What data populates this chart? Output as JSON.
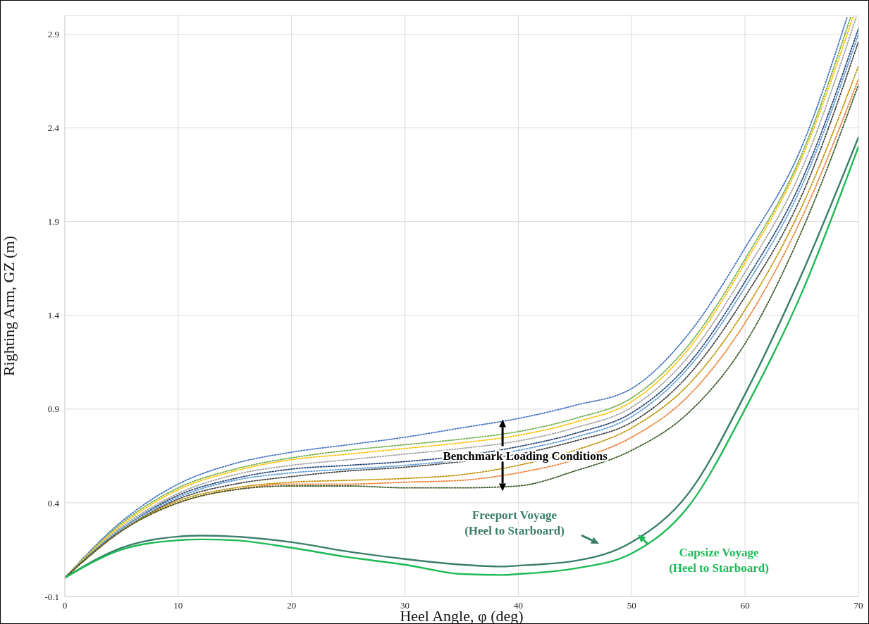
{
  "chart_data": {
    "type": "line",
    "xlabel": "Heel Angle, φ (deg)",
    "ylabel": "Righting Arm, GZ (m)",
    "x": [
      0,
      5,
      10,
      15,
      20,
      25,
      30,
      35,
      40,
      45,
      50,
      55,
      60,
      65,
      70
    ],
    "xlim": [
      0,
      70
    ],
    "xticks": [
      0,
      10,
      20,
      30,
      40,
      50,
      60,
      70
    ],
    "ylim": [
      -0.1,
      3.0
    ],
    "yticks": [
      -0.1,
      0.4,
      0.9,
      1.4,
      1.9,
      2.4,
      2.9
    ],
    "grid": true,
    "marker": "none",
    "series": [
      {
        "color": "#4472c4",
        "line_style": "dotted",
        "x": [
          0,
          5,
          10,
          15,
          20,
          25,
          30,
          35,
          40,
          45,
          50,
          55,
          60,
          65,
          69
        ],
        "values": [
          0,
          0.3,
          0.5,
          0.61,
          0.67,
          0.71,
          0.75,
          0.8,
          0.85,
          0.92,
          1.01,
          1.3,
          1.76,
          2.3,
          2.99
        ]
      },
      {
        "color": "#70ad47",
        "line_style": "dotted",
        "x": [
          0,
          5,
          10,
          15,
          20,
          25,
          30,
          35,
          40,
          45,
          50,
          55,
          60,
          65,
          69.3
        ],
        "values": [
          0,
          0.29,
          0.48,
          0.58,
          0.64,
          0.68,
          0.71,
          0.74,
          0.78,
          0.85,
          0.96,
          1.24,
          1.7,
          2.26,
          2.99
        ]
      },
      {
        "color": "#ffc000",
        "line_style": "dotted",
        "x": [
          0,
          5,
          10,
          15,
          20,
          25,
          30,
          35,
          40,
          45,
          50,
          55,
          60,
          65,
          69.5
        ],
        "values": [
          0,
          0.28,
          0.47,
          0.57,
          0.63,
          0.66,
          0.69,
          0.72,
          0.76,
          0.83,
          0.94,
          1.22,
          1.68,
          2.24,
          2.99
        ]
      },
      {
        "color": "#a5a5a5",
        "line_style": "dotted",
        "x": [
          0,
          5,
          10,
          15,
          20,
          25,
          30,
          35,
          40,
          45,
          50,
          55,
          60,
          65,
          69.8
        ],
        "values": [
          0,
          0.27,
          0.45,
          0.55,
          0.6,
          0.63,
          0.66,
          0.69,
          0.73,
          0.8,
          0.91,
          1.18,
          1.63,
          2.18,
          2.99
        ]
      },
      {
        "color": "#264478",
        "line_style": "dotted",
        "values": [
          0,
          0.26,
          0.44,
          0.53,
          0.58,
          0.6,
          0.62,
          0.65,
          0.7,
          0.77,
          0.88,
          1.14,
          1.58,
          2.12,
          2.93
        ]
      },
      {
        "color": "#5b9bd5",
        "line_style": "dotted",
        "values": [
          0,
          0.26,
          0.43,
          0.52,
          0.56,
          0.58,
          0.6,
          0.63,
          0.68,
          0.75,
          0.86,
          1.12,
          1.55,
          2.09,
          2.9
        ]
      },
      {
        "color": "#404040",
        "line_style": "dotted",
        "values": [
          0,
          0.25,
          0.42,
          0.5,
          0.54,
          0.57,
          0.59,
          0.62,
          0.66,
          0.73,
          0.83,
          1.08,
          1.5,
          2.04,
          2.86
        ]
      },
      {
        "color": "#bf9000",
        "line_style": "dotted",
        "values": [
          0,
          0.25,
          0.41,
          0.48,
          0.51,
          0.52,
          0.53,
          0.55,
          0.6,
          0.68,
          0.8,
          1.03,
          1.43,
          1.98,
          2.73
        ]
      },
      {
        "color": "#ed7d31",
        "line_style": "dotted",
        "values": [
          0,
          0.25,
          0.4,
          0.47,
          0.5,
          0.5,
          0.51,
          0.52,
          0.56,
          0.63,
          0.75,
          0.97,
          1.36,
          1.92,
          2.66
        ]
      },
      {
        "color": "#375623",
        "line_style": "dotted",
        "values": [
          0,
          0.25,
          0.4,
          0.47,
          0.49,
          0.49,
          0.48,
          0.48,
          0.49,
          0.57,
          0.68,
          0.88,
          1.25,
          1.85,
          2.63
        ]
      },
      {
        "color": "#3a7d6a",
        "line_style": "solid",
        "x": [
          0,
          5,
          10,
          12,
          15,
          20,
          25,
          30,
          35,
          38.5,
          40,
          45,
          50,
          55,
          60,
          65,
          70
        ],
        "values": [
          0,
          0.16,
          0.22,
          0.225,
          0.22,
          0.19,
          0.14,
          0.1,
          0.07,
          0.06,
          0.065,
          0.09,
          0.19,
          0.45,
          0.98,
          1.62,
          2.35
        ]
      },
      {
        "color": "#1db954",
        "line_style": "solid",
        "x": [
          0,
          5,
          10,
          12,
          15,
          20,
          25,
          30,
          35,
          38.5,
          40,
          45,
          50,
          55,
          60,
          65,
          70
        ],
        "values": [
          0,
          0.15,
          0.2,
          0.205,
          0.2,
          0.16,
          0.11,
          0.07,
          0.02,
          0.015,
          0.02,
          0.05,
          0.13,
          0.38,
          0.9,
          1.52,
          2.3
        ]
      }
    ],
    "annotations": [
      {
        "text": "Benchmark Loading Conditions",
        "x": 40.6,
        "y": 0.65
      },
      "Freeport Voyage\n(Heel to Starboard)",
      "Capsize Voyage\n(Heel to Starboard)"
    ]
  }
}
